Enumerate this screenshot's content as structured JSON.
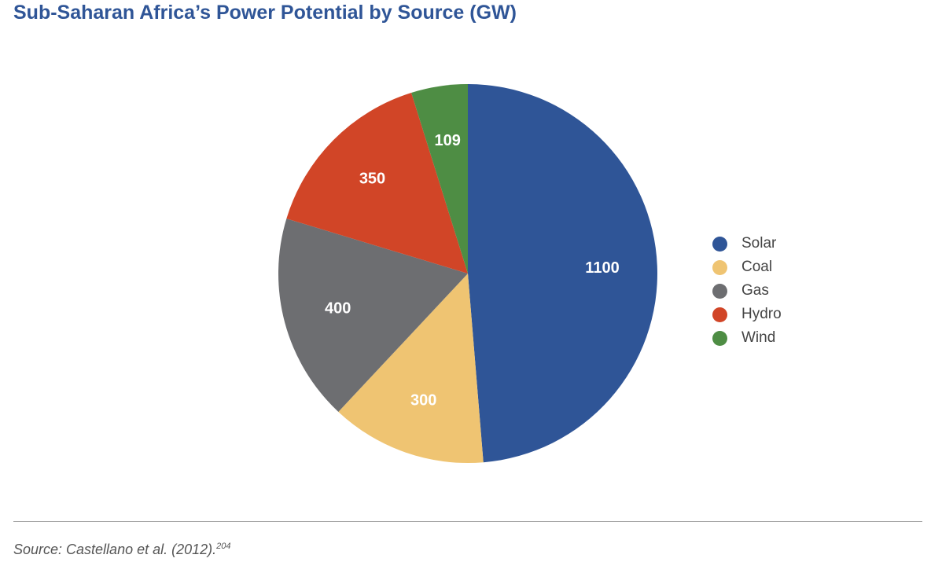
{
  "title": "Sub-Saharan Africa’s Power Potential by Source (GW)",
  "chart_data": {
    "type": "pie",
    "title": "Sub-Saharan Africa’s Power Potential by Source (GW)",
    "start_angle_deg": 0,
    "direction": "clockwise",
    "legend_position": "right",
    "slices": [
      {
        "label": "Solar",
        "value": 1100,
        "value_label": "1100",
        "color": "#2f5597"
      },
      {
        "label": "Coal",
        "value": 300,
        "value_label": "300",
        "color": "#efc472"
      },
      {
        "label": "Gas",
        "value": 400,
        "value_label": "400",
        "color": "#6d6e71"
      },
      {
        "label": "Hydro",
        "value": 350,
        "value_label": "350",
        "color": "#d14527"
      },
      {
        "label": "Wind",
        "value": 109,
        "value_label": "109",
        "color": "#4e8d44"
      }
    ]
  },
  "legend": {
    "items": [
      {
        "label": "Solar",
        "color": "#2f5597"
      },
      {
        "label": "Coal",
        "color": "#efc472"
      },
      {
        "label": "Gas",
        "color": "#6d6e71"
      },
      {
        "label": "Hydro",
        "color": "#d14527"
      },
      {
        "label": "Wind",
        "color": "#4e8d44"
      }
    ]
  },
  "source": {
    "text": "Source: Castellano et al. (2012).",
    "footnote": "204"
  }
}
